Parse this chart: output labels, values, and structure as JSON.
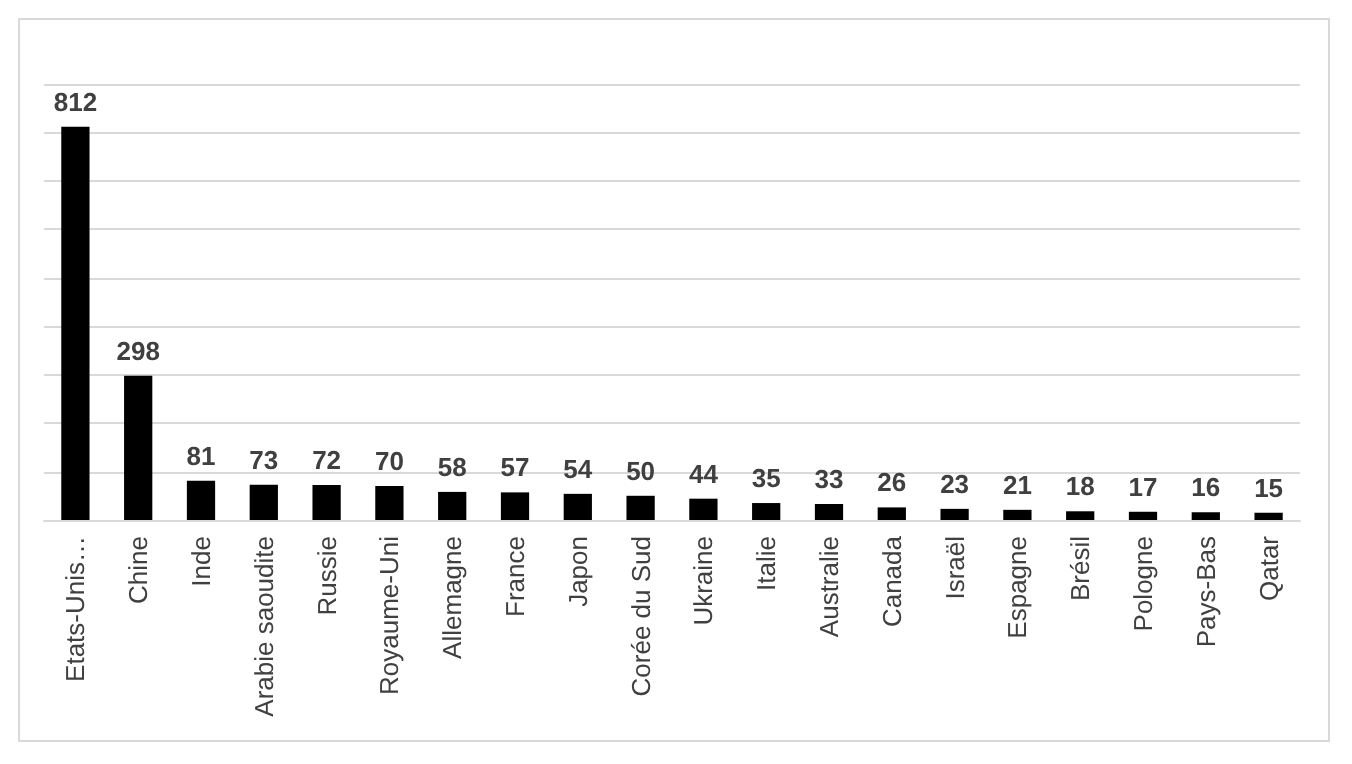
{
  "chart_data": {
    "type": "bar",
    "categories": [
      "Etats-Unis…",
      "Chine",
      "Inde",
      "Arabie saoudite",
      "Russie",
      "Royaume-Uni",
      "Allemagne",
      "France",
      "Japon",
      "Corée du Sud",
      "Ukraine",
      "Italie",
      "Australie",
      "Canada",
      "Israël",
      "Espagne",
      "Brésil",
      "Pologne",
      "Pays-Bas",
      "Qatar"
    ],
    "values": [
      812,
      298,
      81,
      73,
      72,
      70,
      58,
      57,
      54,
      50,
      44,
      35,
      33,
      26,
      23,
      21,
      18,
      17,
      16,
      15
    ],
    "color": "#000000",
    "ylim": [
      0,
      900
    ],
    "yticks": [
      {
        "value": 0,
        "label": null
      },
      {
        "value": 100,
        "label": null
      },
      {
        "value": 200,
        "label": null
      },
      {
        "value": 300,
        "label": null
      },
      {
        "value": 400,
        "label": null
      },
      {
        "value": 500,
        "label": null
      },
      {
        "value": 600,
        "label": null
      },
      {
        "value": 700,
        "label": null
      },
      {
        "value": 800,
        "label": null
      },
      {
        "value": 900,
        "label": null
      }
    ],
    "tick_labels": "x",
    "grid": "y",
    "data_labels": true
  }
}
